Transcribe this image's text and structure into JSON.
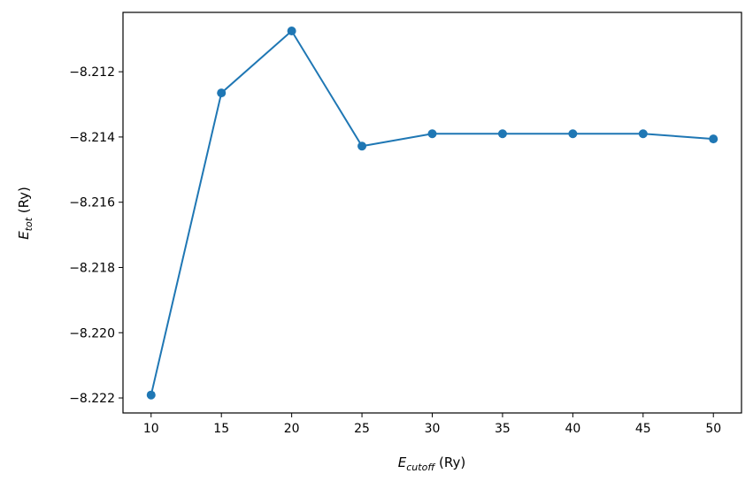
{
  "chart_data": {
    "type": "line",
    "title": "",
    "xlabel": "E_cutoff (Ry)",
    "xlabel_main": "E",
    "xlabel_sub": "cutoff",
    "xlabel_unit": " (Ry)",
    "ylabel": "E_tot (Ry)",
    "ylabel_main": "E",
    "ylabel_sub": "tot",
    "ylabel_unit": " (Ry)",
    "x": [
      10,
      15,
      20,
      25,
      30,
      35,
      40,
      45,
      50
    ],
    "series": [
      {
        "name": "E_tot",
        "color": "#1f77b4",
        "values": [
          -8.22191,
          -8.21265,
          -8.21075,
          -8.21428,
          -8.2139,
          -8.2139,
          -8.2139,
          -8.2139,
          -8.21406
        ]
      }
    ],
    "xlim": [
      8,
      52
    ],
    "ylim": [
      -8.22246,
      -8.21018
    ],
    "xticks": [
      10,
      15,
      20,
      25,
      30,
      35,
      40,
      45,
      50
    ],
    "xtick_labels": [
      "10",
      "15",
      "20",
      "25",
      "30",
      "35",
      "40",
      "45",
      "50"
    ],
    "yticks": [
      -8.212,
      -8.214,
      -8.216,
      -8.218,
      -8.22,
      -8.222
    ],
    "ytick_labels": [
      "−8.212",
      "−8.214",
      "−8.216",
      "−8.218",
      "−8.220",
      "−8.222"
    ],
    "grid": false,
    "legend": "none"
  }
}
